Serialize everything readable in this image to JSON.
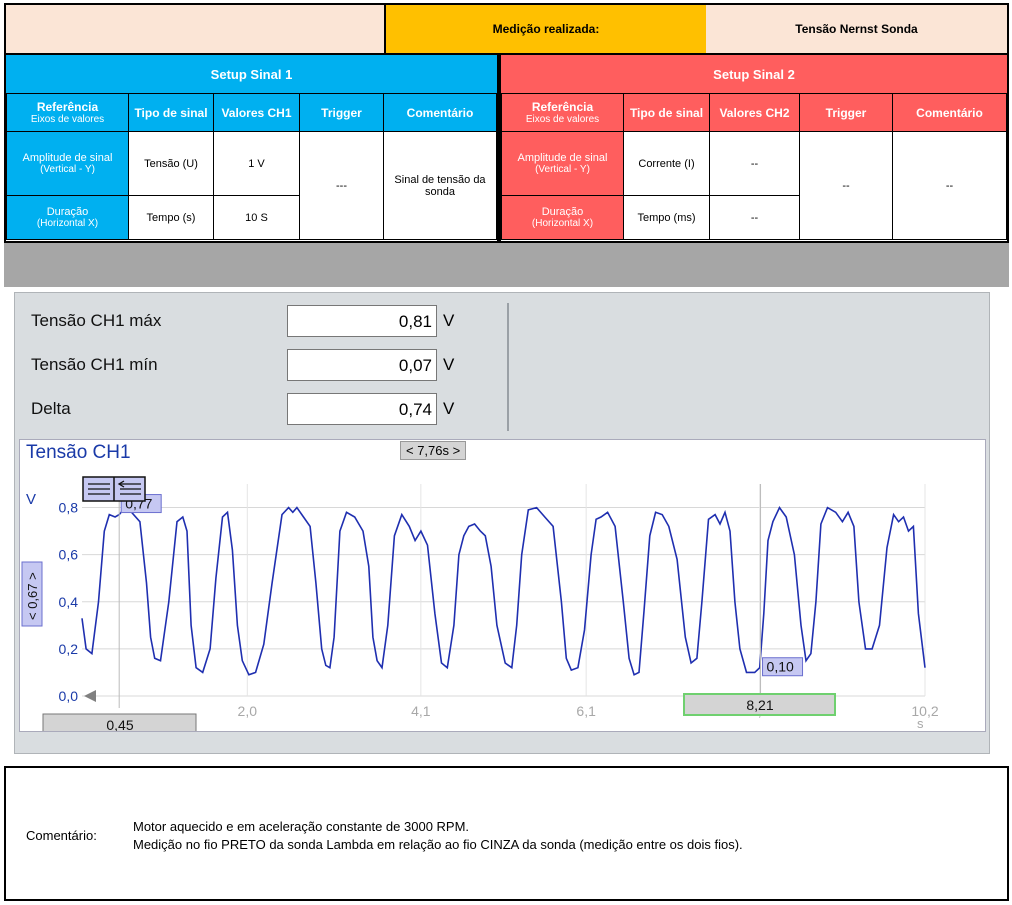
{
  "header": {
    "measurement_label": "Medição realizada:",
    "measurement_value": "Tensão Nernst Sonda"
  },
  "setup1": {
    "title": "Setup Sinal 1",
    "headers": {
      "ref": "Referência",
      "ref_sub": "Eixos de valores",
      "tipo": "Tipo de sinal",
      "valores": "Valores CH1",
      "trigger": "Trigger",
      "comentario": "Comentário"
    },
    "amplitude_label": "Amplitude de sinal",
    "amplitude_sub": "(Vertical - Y)",
    "amplitude_tipo": "Tensão (U)",
    "amplitude_valor": "1 V",
    "duracao_label": "Duração",
    "duracao_sub": "(Horizontal X)",
    "duracao_tipo": "Tempo (s)",
    "duracao_valor": "10 S",
    "trigger": "---",
    "comentario": "Sinal de tensão da sonda"
  },
  "setup2": {
    "title": "Setup Sinal 2",
    "headers": {
      "ref": "Referência",
      "ref_sub": "Eixos de valores",
      "tipo": "Tipo de sinal",
      "valores": "Valores CH2",
      "trigger": "Trigger",
      "comentario": "Comentário"
    },
    "amplitude_label": "Amplitude de sinal",
    "amplitude_sub": "(Vertical - Y)",
    "amplitude_tipo": "Corrente (I)",
    "amplitude_valor": "--",
    "duracao_label": "Duração",
    "duracao_sub": "(Horizontal X)",
    "duracao_tipo": "Tempo (ms)",
    "duracao_valor": "--",
    "trigger": "--",
    "comentario": "--"
  },
  "measurements": [
    {
      "label": "Tensão CH1 máx",
      "value": "0,81",
      "unit": "V"
    },
    {
      "label": "Tensão CH1 mín",
      "value": "0,07",
      "unit": "V"
    },
    {
      "label": "Delta",
      "value": "0,74",
      "unit": "V"
    }
  ],
  "chart": {
    "title": "Tensão CH1",
    "delta_t": "< 7,76s >",
    "y_unit": "V",
    "x_unit": "s",
    "y_ticks": [
      "0,0",
      "0,2",
      "0,4",
      "0,6",
      "0,8"
    ],
    "x_ticks": [
      "2,0",
      "4,1",
      "6,1",
      "8,2",
      "10,2"
    ],
    "cursor1_label": "0,77",
    "cursor2_label": "0,10",
    "cursor1_x": "0,45",
    "cursor2_x": "8,21",
    "vertical_delta": "< 0,67 >",
    "line_color": "#1f2fb0"
  },
  "chart_data": {
    "type": "line",
    "xlim": [
      0,
      10.2
    ],
    "ylim": [
      0,
      0.9
    ],
    "ylabel": "V",
    "xlabel": "s",
    "series": [
      {
        "x": [
          0.0,
          0.05,
          0.12,
          0.2,
          0.27,
          0.33,
          0.4,
          0.45,
          0.52,
          0.6,
          0.7,
          0.78,
          0.83,
          0.88,
          0.95,
          1.05,
          1.15,
          1.22,
          1.27,
          1.32,
          1.38,
          1.46,
          1.55,
          1.62,
          1.7,
          1.76,
          1.82,
          1.88,
          1.94,
          2.02,
          2.1,
          2.2,
          2.3,
          2.42,
          2.5,
          2.55,
          2.6,
          2.68,
          2.76,
          2.83,
          2.9,
          2.95,
          3.0,
          3.05,
          3.12,
          3.2,
          3.3,
          3.4,
          3.47,
          3.52,
          3.57,
          3.63,
          3.7,
          3.78,
          3.87,
          3.96,
          4.03,
          4.1,
          4.18,
          4.27,
          4.35,
          4.42,
          4.5,
          4.56,
          4.62,
          4.68,
          4.75,
          4.82,
          4.88,
          4.95,
          5.02,
          5.12,
          5.2,
          5.26,
          5.32,
          5.4,
          5.5,
          5.6,
          5.7,
          5.8,
          5.86,
          5.92,
          6.0,
          6.08,
          6.16,
          6.22,
          6.28,
          6.36,
          6.45,
          6.55,
          6.62,
          6.68,
          6.74,
          6.8,
          6.87,
          6.94,
          7.02,
          7.1,
          7.2,
          7.3,
          7.37,
          7.44,
          7.5,
          7.58,
          7.66,
          7.72,
          7.78,
          7.84,
          7.9,
          7.96,
          8.04,
          8.14,
          8.2,
          8.25,
          8.3,
          8.36,
          8.44,
          8.52,
          8.62,
          8.7,
          8.76,
          8.82,
          8.88,
          8.94,
          9.02,
          9.12,
          9.2,
          9.27,
          9.34,
          9.4,
          9.48,
          9.56,
          9.65,
          9.74,
          9.82,
          9.88,
          9.94,
          10.0,
          10.06,
          10.12,
          10.2
        ],
        "y": [
          0.33,
          0.2,
          0.18,
          0.4,
          0.7,
          0.77,
          0.76,
          0.77,
          0.8,
          0.78,
          0.74,
          0.48,
          0.25,
          0.16,
          0.15,
          0.4,
          0.74,
          0.76,
          0.7,
          0.3,
          0.12,
          0.1,
          0.2,
          0.5,
          0.76,
          0.78,
          0.62,
          0.3,
          0.15,
          0.09,
          0.1,
          0.22,
          0.48,
          0.77,
          0.8,
          0.78,
          0.8,
          0.76,
          0.72,
          0.48,
          0.2,
          0.13,
          0.12,
          0.25,
          0.7,
          0.78,
          0.76,
          0.7,
          0.55,
          0.25,
          0.15,
          0.12,
          0.3,
          0.68,
          0.77,
          0.72,
          0.66,
          0.7,
          0.64,
          0.35,
          0.14,
          0.12,
          0.3,
          0.6,
          0.68,
          0.72,
          0.73,
          0.7,
          0.68,
          0.55,
          0.3,
          0.14,
          0.12,
          0.3,
          0.6,
          0.79,
          0.8,
          0.76,
          0.72,
          0.4,
          0.16,
          0.11,
          0.12,
          0.28,
          0.6,
          0.75,
          0.76,
          0.78,
          0.72,
          0.4,
          0.16,
          0.09,
          0.1,
          0.36,
          0.68,
          0.78,
          0.77,
          0.72,
          0.58,
          0.25,
          0.14,
          0.16,
          0.4,
          0.75,
          0.77,
          0.73,
          0.78,
          0.7,
          0.4,
          0.2,
          0.1,
          0.1,
          0.12,
          0.35,
          0.66,
          0.74,
          0.8,
          0.76,
          0.6,
          0.3,
          0.15,
          0.18,
          0.4,
          0.73,
          0.8,
          0.78,
          0.74,
          0.78,
          0.72,
          0.4,
          0.2,
          0.2,
          0.3,
          0.63,
          0.77,
          0.74,
          0.76,
          0.7,
          0.72,
          0.35,
          0.12
        ]
      }
    ]
  },
  "comment": {
    "label": "Comentário:",
    "line1": "Motor aquecido e em aceleração constante de 3000 RPM.",
    "line2": "Medição no  fio PRETO da sonda Lambda em relação ao fio CINZA da sonda (medição entre os dois fios)."
  }
}
